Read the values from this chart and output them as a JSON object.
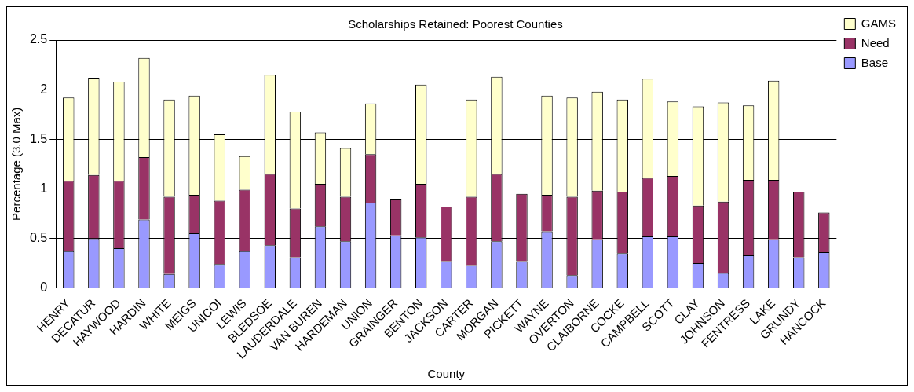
{
  "chart_data": {
    "type": "bar",
    "title": "Scholarships Retained: Poorest Counties",
    "xlabel": "County",
    "ylabel": "Percentage (3.0 Max)",
    "categories": [
      "HENRY",
      "DECATUR",
      "HAYWOOD",
      "HARDIN",
      "WHITE",
      "MEIGS",
      "UNICOI",
      "LEWIS",
      "BLEDSOE",
      "LAUDERDALE",
      "VAN BUREN",
      "HARDEMAN",
      "UNION",
      "GRAINGER",
      "BENTON",
      "JACKSON",
      "CARTER",
      "MORGAN",
      "PICKETT",
      "WAYNE",
      "OVERTON",
      "CLAIBORNE",
      "COCKE",
      "CAMPBELL",
      "SCOTT",
      "CLAY",
      "JOHNSON",
      "FENTRESS",
      "LAKE",
      "GRUNDY",
      "HANCOCK"
    ],
    "stacked": true,
    "series": [
      {
        "name": "Base",
        "color": "#9999ff",
        "values": [
          0.37,
          0.5,
          0.4,
          0.69,
          0.14,
          0.55,
          0.24,
          0.37,
          0.43,
          0.31,
          0.62,
          0.47,
          0.86,
          0.53,
          0.51,
          0.27,
          0.23,
          0.47,
          0.27,
          0.57,
          0.13,
          0.49,
          0.35,
          0.52,
          0.52,
          0.25,
          0.15,
          0.33,
          0.49,
          0.31,
          0.36
        ]
      },
      {
        "name": "Need",
        "color": "#993366",
        "values": [
          0.71,
          0.64,
          0.68,
          0.63,
          0.78,
          0.39,
          0.64,
          0.62,
          0.72,
          0.49,
          0.43,
          0.45,
          0.49,
          0.37,
          0.54,
          0.55,
          0.69,
          0.68,
          0.68,
          0.37,
          0.79,
          0.49,
          0.62,
          0.59,
          0.61,
          0.58,
          0.72,
          0.76,
          0.6,
          0.66,
          0.4
        ]
      },
      {
        "name": "GAMS",
        "color": "#ffffcc",
        "values": [
          0.84,
          0.98,
          1.0,
          1.0,
          0.98,
          1.0,
          0.67,
          0.34,
          1.0,
          0.98,
          0.52,
          0.49,
          0.51,
          0,
          1.0,
          0,
          0.98,
          0.98,
          0,
          1.0,
          1.0,
          1.0,
          0.93,
          1.0,
          0.75,
          1.0,
          1.0,
          0.75,
          1.0,
          0,
          0
        ]
      }
    ],
    "ylim": [
      0,
      2.5
    ],
    "yticks": [
      0,
      0.5,
      1,
      1.5,
      2,
      2.5
    ],
    "grid": "y",
    "legend": "top right"
  }
}
